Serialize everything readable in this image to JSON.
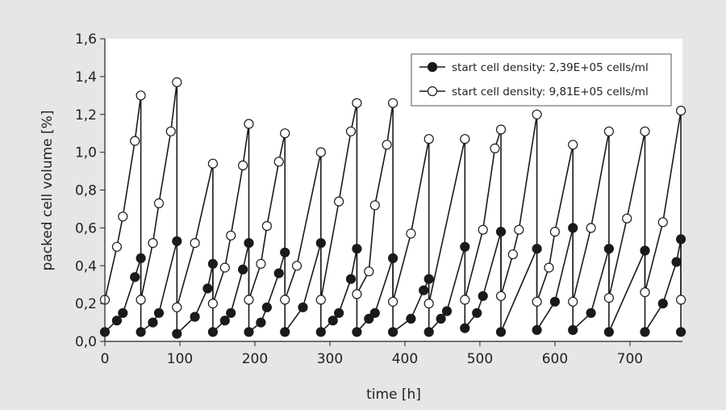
{
  "chart_data": {
    "type": "line",
    "xlabel": "time [h]",
    "ylabel": "packed cell volume [%]",
    "xlim": [
      0,
      770
    ],
    "ylim": [
      0,
      1.6
    ],
    "x_ticks": [
      "0",
      "100",
      "200",
      "300",
      "400",
      "500",
      "600",
      "700"
    ],
    "x_tick_values": [
      0,
      100,
      200,
      300,
      400,
      500,
      600,
      700
    ],
    "y_ticks": [
      "0,0",
      "0,2",
      "0,4",
      "0,6",
      "0,8",
      "1,0",
      "1,2",
      "1,4",
      "1,6"
    ],
    "y_tick_values": [
      0,
      0.2,
      0.4,
      0.6,
      0.8,
      1.0,
      1.2,
      1.4,
      1.6
    ],
    "grid": false,
    "legend_position": "top-right",
    "series": [
      {
        "name": "start cell density: 2,39E+05 cells/ml",
        "marker": "filled-circle",
        "color": "#1a1a1a",
        "points": [
          [
            0,
            0.05
          ],
          [
            16,
            0.11
          ],
          [
            24,
            0.15
          ],
          [
            40,
            0.34
          ],
          [
            48,
            0.44
          ],
          [
            48,
            0.05
          ],
          [
            64,
            0.1
          ],
          [
            72,
            0.15
          ],
          [
            96,
            0.53
          ],
          [
            96,
            0.04
          ],
          [
            120,
            0.13
          ],
          [
            137,
            0.28
          ],
          [
            144,
            0.41
          ],
          [
            144,
            0.05
          ],
          [
            160,
            0.11
          ],
          [
            168,
            0.15
          ],
          [
            184,
            0.38
          ],
          [
            192,
            0.52
          ],
          [
            192,
            0.05
          ],
          [
            208,
            0.1
          ],
          [
            216,
            0.18
          ],
          [
            232,
            0.36
          ],
          [
            240,
            0.47
          ],
          [
            240,
            0.05
          ],
          [
            264,
            0.18
          ],
          [
            288,
            0.52
          ],
          [
            288,
            0.05
          ],
          [
            304,
            0.11
          ],
          [
            312,
            0.15
          ],
          [
            328,
            0.33
          ],
          [
            336,
            0.49
          ],
          [
            336,
            0.05
          ],
          [
            352,
            0.12
          ],
          [
            360,
            0.15
          ],
          [
            384,
            0.44
          ],
          [
            384,
            0.05
          ],
          [
            408,
            0.12
          ],
          [
            425,
            0.27
          ],
          [
            432,
            0.33
          ],
          [
            432,
            0.05
          ],
          [
            448,
            0.12
          ],
          [
            456,
            0.16
          ],
          [
            480,
            0.5
          ],
          [
            480,
            0.07
          ],
          [
            496,
            0.15
          ],
          [
            504,
            0.24
          ],
          [
            528,
            0.58
          ],
          [
            528,
            0.05
          ],
          [
            576,
            0.49
          ],
          [
            576,
            0.06
          ],
          [
            600,
            0.21
          ],
          [
            624,
            0.6
          ],
          [
            624,
            0.06
          ],
          [
            648,
            0.15
          ],
          [
            672,
            0.49
          ],
          [
            672,
            0.05
          ],
          [
            720,
            0.48
          ],
          [
            720,
            0.05
          ],
          [
            744,
            0.2
          ],
          [
            762,
            0.42
          ],
          [
            768,
            0.54
          ],
          [
            768,
            0.05
          ]
        ]
      },
      {
        "name": "start cell density: 9,81E+05 cells/ml",
        "marker": "open-circle",
        "color": "#1a1a1a",
        "points": [
          [
            0,
            0.22
          ],
          [
            16,
            0.5
          ],
          [
            24,
            0.66
          ],
          [
            40,
            1.06
          ],
          [
            48,
            1.3
          ],
          [
            48,
            0.22
          ],
          [
            64,
            0.52
          ],
          [
            72,
            0.73
          ],
          [
            88,
            1.11
          ],
          [
            96,
            1.37
          ],
          [
            96,
            0.18
          ],
          [
            120,
            0.52
          ],
          [
            144,
            0.94
          ],
          [
            144,
            0.2
          ],
          [
            160,
            0.39
          ],
          [
            168,
            0.56
          ],
          [
            184,
            0.93
          ],
          [
            192,
            1.15
          ],
          [
            192,
            0.22
          ],
          [
            208,
            0.41
          ],
          [
            216,
            0.61
          ],
          [
            232,
            0.95
          ],
          [
            240,
            1.1
          ],
          [
            240,
            0.22
          ],
          [
            256,
            0.4
          ],
          [
            288,
            1.0
          ],
          [
            288,
            0.22
          ],
          [
            312,
            0.74
          ],
          [
            328,
            1.11
          ],
          [
            336,
            1.26
          ],
          [
            336,
            0.25
          ],
          [
            352,
            0.37
          ],
          [
            360,
            0.72
          ],
          [
            376,
            1.04
          ],
          [
            384,
            1.26
          ],
          [
            384,
            0.21
          ],
          [
            408,
            0.57
          ],
          [
            432,
            1.07
          ],
          [
            432,
            0.2
          ],
          [
            480,
            1.07
          ],
          [
            480,
            0.22
          ],
          [
            504,
            0.59
          ],
          [
            520,
            1.02
          ],
          [
            528,
            1.12
          ],
          [
            528,
            0.24
          ],
          [
            544,
            0.46
          ],
          [
            552,
            0.59
          ],
          [
            576,
            1.2
          ],
          [
            576,
            0.21
          ],
          [
            592,
            0.39
          ],
          [
            600,
            0.58
          ],
          [
            624,
            1.04
          ],
          [
            624,
            0.21
          ],
          [
            648,
            0.6
          ],
          [
            672,
            1.11
          ],
          [
            672,
            0.23
          ],
          [
            696,
            0.65
          ],
          [
            720,
            1.11
          ],
          [
            720,
            0.26
          ],
          [
            744,
            0.63
          ],
          [
            768,
            1.22
          ],
          [
            768,
            0.22
          ]
        ]
      }
    ]
  }
}
